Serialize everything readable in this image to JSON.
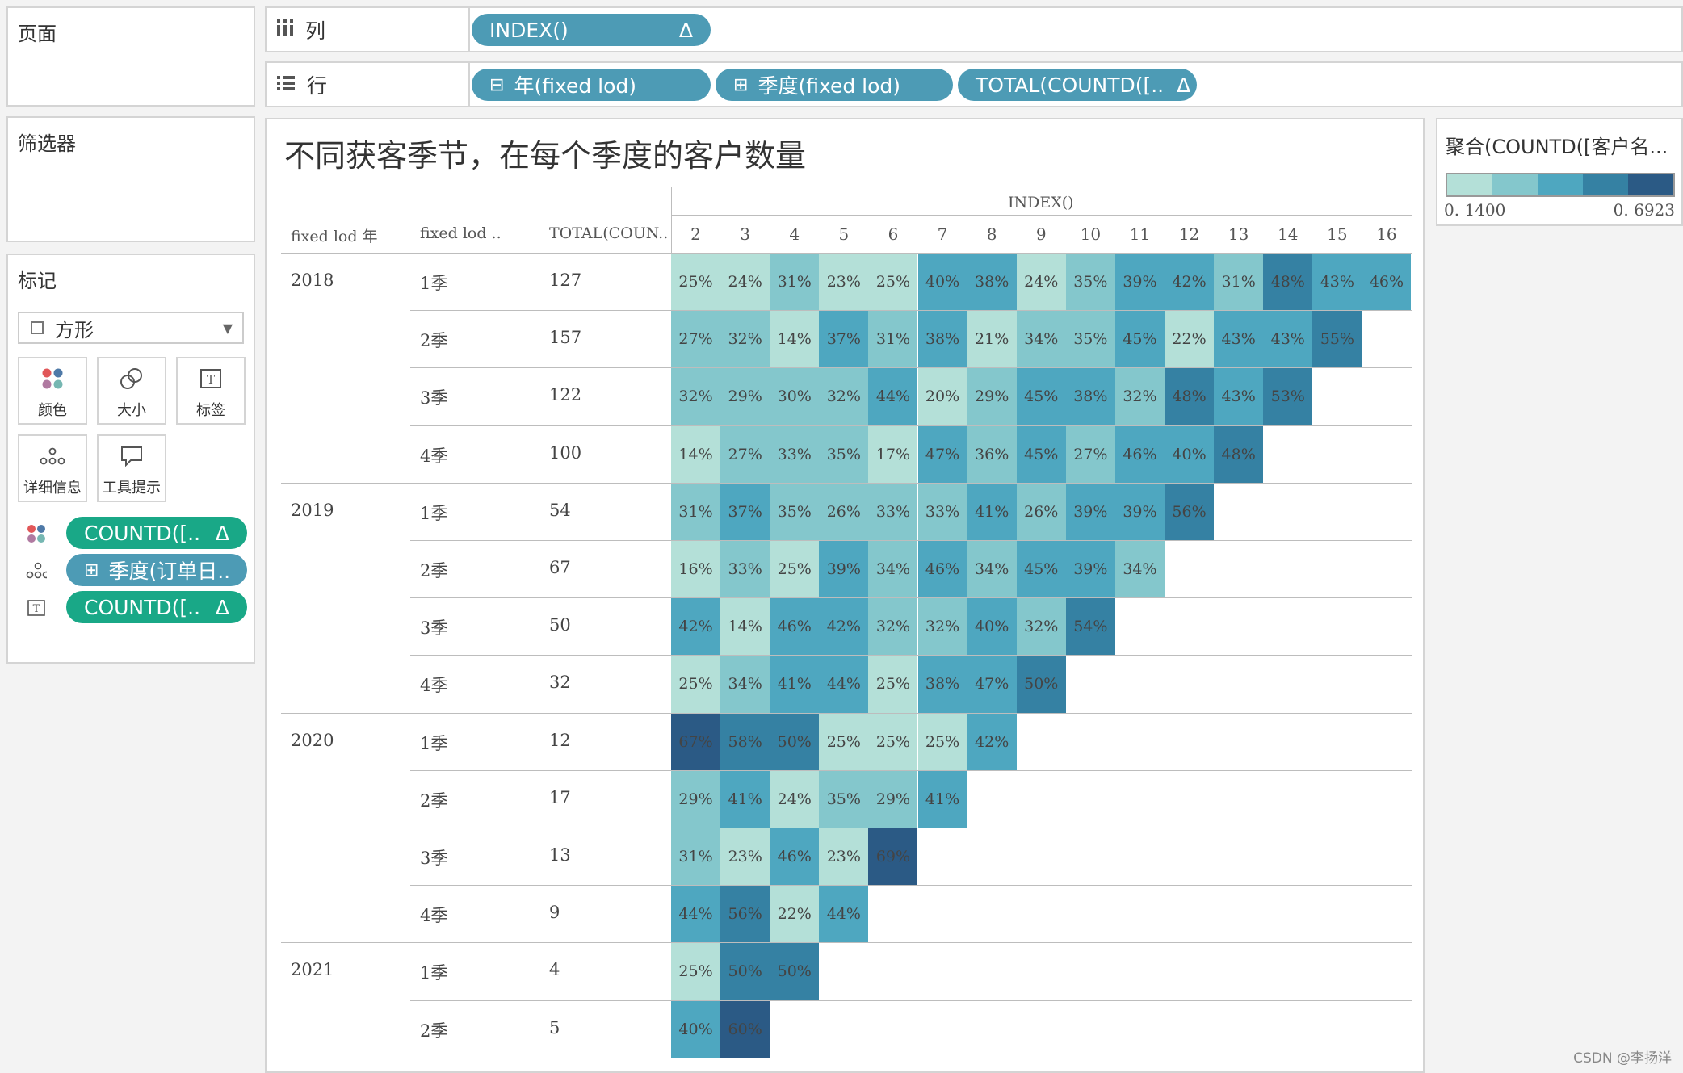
{
  "pages_panel": {
    "title": "页面"
  },
  "filters_panel": {
    "title": "筛选器"
  },
  "marks_panel": {
    "title": "标记",
    "mark_type": "方形",
    "buttons": [
      "颜色",
      "大小",
      "标签",
      "详细信息",
      "工具提示"
    ],
    "fields": [
      {
        "icon": "color-dots-icon",
        "label": "COUNTD([..",
        "delta": "Δ",
        "color": "#19a887"
      },
      {
        "icon": "detail-dots-icon",
        "label": "季度(订单日..",
        "prefix": "⊞",
        "delta": "",
        "color": "#4d9bb5"
      },
      {
        "icon": "text-label-icon",
        "label": "COUNTD([..",
        "delta": "Δ",
        "color": "#19a887"
      }
    ]
  },
  "columns_shelf": {
    "label": "列",
    "pills": [
      {
        "text": "INDEX()",
        "delta": "Δ"
      }
    ]
  },
  "rows_shelf": {
    "label": "行",
    "pills": [
      {
        "prefix": "⊟",
        "text": "年(fixed lod)",
        "delta": ""
      },
      {
        "prefix": "⊞",
        "text": "季度(fixed lod)",
        "delta": ""
      },
      {
        "prefix": "",
        "text": "TOTAL(COUNTD([..",
        "delta": "Δ"
      }
    ]
  },
  "view": {
    "title": "不同获客季节，在每个季度的客户数量",
    "index_header": "INDEX()",
    "col_headers": [
      "fixed lod 年",
      "fixed lod ..",
      "TOTAL(COUN.."
    ],
    "index_values": [
      "2",
      "3",
      "4",
      "5",
      "6",
      "7",
      "8",
      "9",
      "10",
      "11",
      "12",
      "13",
      "14",
      "15",
      "16"
    ]
  },
  "chart_data": {
    "type": "heatmap",
    "title": "不同获客季节，在每个季度的客户数量",
    "x_label": "INDEX()",
    "x": [
      2,
      3,
      4,
      5,
      6,
      7,
      8,
      9,
      10,
      11,
      12,
      13,
      14,
      15,
      16
    ],
    "rows": [
      {
        "year": "2018",
        "quarter": "1季",
        "total": "127",
        "values": [
          "25%",
          "24%",
          "31%",
          "23%",
          "25%",
          "40%",
          "38%",
          "24%",
          "35%",
          "39%",
          "42%",
          "31%",
          "48%",
          "43%",
          "46%"
        ]
      },
      {
        "year": "",
        "quarter": "2季",
        "total": "157",
        "values": [
          "27%",
          "32%",
          "14%",
          "37%",
          "31%",
          "38%",
          "21%",
          "34%",
          "35%",
          "45%",
          "22%",
          "43%",
          "43%",
          "55%"
        ]
      },
      {
        "year": "",
        "quarter": "3季",
        "total": "122",
        "values": [
          "32%",
          "29%",
          "30%",
          "32%",
          "44%",
          "20%",
          "29%",
          "45%",
          "38%",
          "32%",
          "48%",
          "43%",
          "53%"
        ]
      },
      {
        "year": "",
        "quarter": "4季",
        "total": "100",
        "values": [
          "14%",
          "27%",
          "33%",
          "35%",
          "17%",
          "47%",
          "36%",
          "45%",
          "27%",
          "46%",
          "40%",
          "48%"
        ]
      },
      {
        "year": "2019",
        "quarter": "1季",
        "total": "54",
        "values": [
          "31%",
          "37%",
          "35%",
          "26%",
          "33%",
          "33%",
          "41%",
          "26%",
          "39%",
          "39%",
          "56%"
        ]
      },
      {
        "year": "",
        "quarter": "2季",
        "total": "67",
        "values": [
          "16%",
          "33%",
          "25%",
          "39%",
          "34%",
          "46%",
          "34%",
          "45%",
          "39%",
          "34%"
        ]
      },
      {
        "year": "",
        "quarter": "3季",
        "total": "50",
        "values": [
          "42%",
          "14%",
          "46%",
          "42%",
          "32%",
          "32%",
          "40%",
          "32%",
          "54%"
        ]
      },
      {
        "year": "",
        "quarter": "4季",
        "total": "32",
        "values": [
          "25%",
          "34%",
          "41%",
          "44%",
          "25%",
          "38%",
          "47%",
          "50%"
        ]
      },
      {
        "year": "2020",
        "quarter": "1季",
        "total": "12",
        "values": [
          "67%",
          "58%",
          "50%",
          "25%",
          "25%",
          "25%",
          "42%"
        ]
      },
      {
        "year": "",
        "quarter": "2季",
        "total": "17",
        "values": [
          "29%",
          "41%",
          "24%",
          "35%",
          "29%",
          "41%"
        ]
      },
      {
        "year": "",
        "quarter": "3季",
        "total": "13",
        "values": [
          "31%",
          "23%",
          "46%",
          "23%",
          "69%"
        ]
      },
      {
        "year": "",
        "quarter": "4季",
        "total": "9",
        "values": [
          "44%",
          "56%",
          "22%",
          "44%"
        ]
      },
      {
        "year": "2021",
        "quarter": "1季",
        "total": "4",
        "values": [
          "25%",
          "50%",
          "50%"
        ]
      },
      {
        "year": "",
        "quarter": "2季",
        "total": "5",
        "values": [
          "40%",
          "60%"
        ]
      }
    ],
    "color_range": [
      0.14,
      0.6923
    ],
    "colors": [
      "#b4e0d8",
      "#84c7cc",
      "#4ea7c0",
      "#3581a3",
      "#2b5a85"
    ]
  },
  "legend": {
    "title": "聚合(COUNTD([客户名...",
    "min_label": "0. 1400",
    "max_label": "0. 6923"
  },
  "watermark": "CSDN @李扬洋"
}
